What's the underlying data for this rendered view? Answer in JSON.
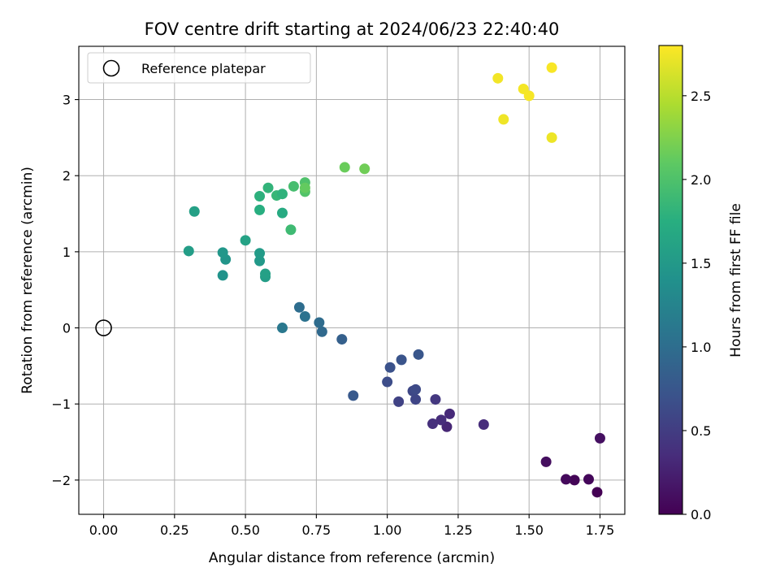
{
  "chart_data": {
    "type": "scatter",
    "title": "FOV centre drift starting at 2024/06/23 22:40:40",
    "xlabel": "Angular distance from reference (arcmin)",
    "ylabel": "Rotation from reference (arcmin)",
    "xlim": [
      -0.0875,
      1.8375
    ],
    "ylim": [
      -2.45,
      3.7
    ],
    "xticks": [
      0.0,
      0.25,
      0.5,
      0.75,
      1.0,
      1.25,
      1.5,
      1.75
    ],
    "xtick_labels": [
      "0.00",
      "0.25",
      "0.50",
      "0.75",
      "1.00",
      "1.25",
      "1.50",
      "1.75"
    ],
    "yticks": [
      -2,
      -1,
      0,
      1,
      2,
      3
    ],
    "ytick_labels": [
      "−2",
      "−1",
      "0",
      "1",
      "2",
      "3"
    ],
    "grid": true,
    "legend": {
      "placement": "top-left",
      "entries": [
        {
          "label": "Reference platepar",
          "marker": "open-circle"
        }
      ]
    },
    "reference_point": {
      "x": 0.0,
      "y": 0.0
    },
    "colorbar": {
      "label": "Hours from first FF file",
      "colormap": "viridis",
      "range": [
        0.0,
        2.8
      ],
      "ticks": [
        0.0,
        0.5,
        1.0,
        1.5,
        2.0,
        2.5
      ],
      "tick_labels": [
        "0.0",
        "0.5",
        "1.0",
        "1.5",
        "2.0",
        "2.5"
      ]
    },
    "points": [
      {
        "x": 1.74,
        "y": -2.16,
        "c": 0.0
      },
      {
        "x": 1.66,
        "y": -2.0,
        "c": 0.03
      },
      {
        "x": 1.71,
        "y": -1.99,
        "c": 0.05
      },
      {
        "x": 1.63,
        "y": -1.99,
        "c": 0.07
      },
      {
        "x": 1.56,
        "y": -1.76,
        "c": 0.1
      },
      {
        "x": 1.75,
        "y": -1.45,
        "c": 0.12
      },
      {
        "x": 1.21,
        "y": -1.3,
        "c": 0.3
      },
      {
        "x": 1.22,
        "y": -1.13,
        "c": 0.33
      },
      {
        "x": 1.19,
        "y": -1.21,
        "c": 0.36
      },
      {
        "x": 1.16,
        "y": -1.26,
        "c": 0.38
      },
      {
        "x": 1.34,
        "y": -1.27,
        "c": 0.35
      },
      {
        "x": 1.17,
        "y": -0.94,
        "c": 0.45
      },
      {
        "x": 1.04,
        "y": -0.97,
        "c": 0.55
      },
      {
        "x": 1.1,
        "y": -0.94,
        "c": 0.58
      },
      {
        "x": 1.09,
        "y": -0.83,
        "c": 0.6
      },
      {
        "x": 1.1,
        "y": -0.81,
        "c": 0.62
      },
      {
        "x": 1.0,
        "y": -0.71,
        "c": 0.65
      },
      {
        "x": 1.01,
        "y": -0.52,
        "c": 0.7
      },
      {
        "x": 1.05,
        "y": -0.42,
        "c": 0.72
      },
      {
        "x": 1.11,
        "y": -0.35,
        "c": 0.74
      },
      {
        "x": 0.88,
        "y": -0.89,
        "c": 0.78
      },
      {
        "x": 0.84,
        "y": -0.15,
        "c": 0.85
      },
      {
        "x": 0.77,
        "y": -0.05,
        "c": 0.95
      },
      {
        "x": 0.76,
        "y": 0.07,
        "c": 0.98
      },
      {
        "x": 0.71,
        "y": 0.15,
        "c": 1.05
      },
      {
        "x": 0.69,
        "y": 0.27,
        "c": 1.0
      },
      {
        "x": 0.63,
        "y": 0.0,
        "c": 1.12
      },
      {
        "x": 0.57,
        "y": 0.67,
        "c": 1.55
      },
      {
        "x": 0.57,
        "y": 0.71,
        "c": 1.58
      },
      {
        "x": 0.55,
        "y": 0.88,
        "c": 1.5
      },
      {
        "x": 0.55,
        "y": 0.98,
        "c": 1.52
      },
      {
        "x": 0.5,
        "y": 1.15,
        "c": 1.6
      },
      {
        "x": 0.43,
        "y": 0.9,
        "c": 1.45
      },
      {
        "x": 0.42,
        "y": 0.99,
        "c": 1.47
      },
      {
        "x": 0.42,
        "y": 0.69,
        "c": 1.42
      },
      {
        "x": 0.3,
        "y": 1.01,
        "c": 1.55
      },
      {
        "x": 0.32,
        "y": 1.53,
        "c": 1.58
      },
      {
        "x": 0.55,
        "y": 1.55,
        "c": 1.75
      },
      {
        "x": 0.55,
        "y": 1.73,
        "c": 1.78
      },
      {
        "x": 0.58,
        "y": 1.84,
        "c": 1.82
      },
      {
        "x": 0.61,
        "y": 1.74,
        "c": 1.85
      },
      {
        "x": 0.63,
        "y": 1.76,
        "c": 1.8
      },
      {
        "x": 0.63,
        "y": 1.51,
        "c": 1.7
      },
      {
        "x": 0.66,
        "y": 1.29,
        "c": 1.9
      },
      {
        "x": 0.67,
        "y": 1.86,
        "c": 1.95
      },
      {
        "x": 0.71,
        "y": 1.91,
        "c": 2.0
      },
      {
        "x": 0.71,
        "y": 1.79,
        "c": 2.02
      },
      {
        "x": 0.71,
        "y": 1.84,
        "c": 2.12
      },
      {
        "x": 0.85,
        "y": 2.11,
        "c": 2.15
      },
      {
        "x": 0.92,
        "y": 2.09,
        "c": 2.18
      },
      {
        "x": 1.39,
        "y": 3.28,
        "c": 2.75
      },
      {
        "x": 1.48,
        "y": 3.14,
        "c": 2.76
      },
      {
        "x": 1.5,
        "y": 3.05,
        "c": 2.77
      },
      {
        "x": 1.58,
        "y": 3.42,
        "c": 2.78
      },
      {
        "x": 1.41,
        "y": 2.74,
        "c": 2.74
      },
      {
        "x": 1.58,
        "y": 2.5,
        "c": 2.73
      }
    ]
  }
}
